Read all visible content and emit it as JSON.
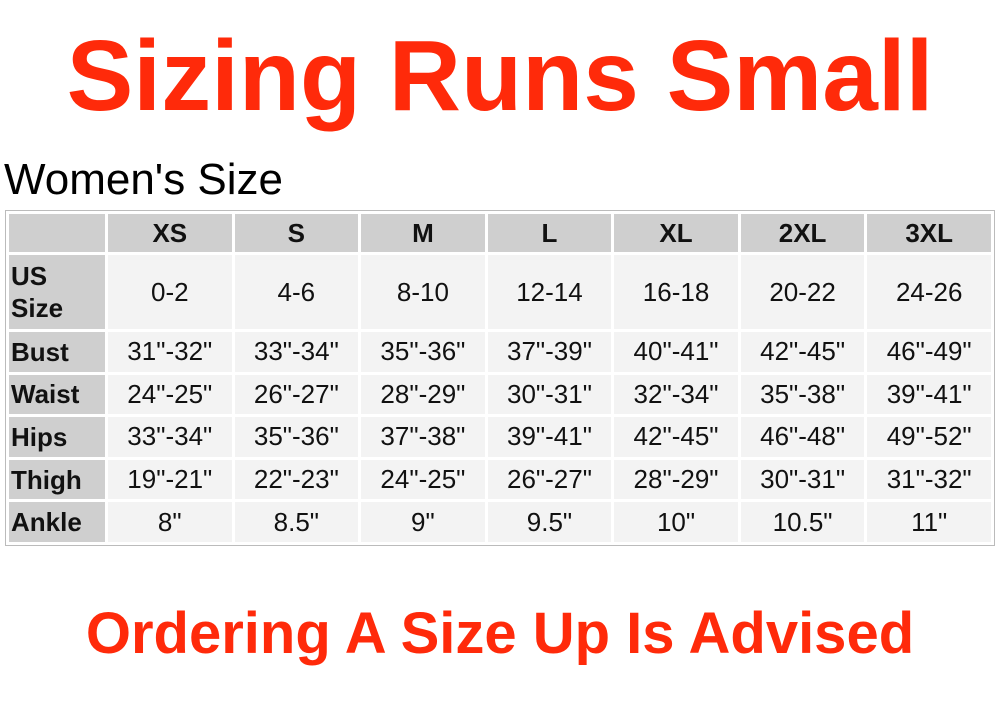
{
  "title": "Sizing Runs Small",
  "subtitle": "Women's Size",
  "footer": "Ordering A Size Up Is Advised",
  "accent_color": "#ff2a0a",
  "table": {
    "columns": [
      "XS",
      "S",
      "M",
      "L",
      "XL",
      "2XL",
      "3XL"
    ],
    "rows": [
      {
        "label": "US Size",
        "values": [
          "0-2",
          "4-6",
          "8-10",
          "12-14",
          "16-18",
          "20-22",
          "24-26"
        ]
      },
      {
        "label": "Bust",
        "values": [
          "31\"-32\"",
          "33\"-34\"",
          "35\"-36\"",
          "37\"-39\"",
          "40\"-41\"",
          "42\"-45\"",
          "46\"-49\""
        ]
      },
      {
        "label": "Waist",
        "values": [
          "24\"-25\"",
          "26\"-27\"",
          "28\"-29\"",
          "30\"-31\"",
          "32\"-34\"",
          "35\"-38\"",
          "39\"-41\""
        ]
      },
      {
        "label": "Hips",
        "values": [
          "33\"-34\"",
          "35\"-36\"",
          "37\"-38\"",
          "39\"-41\"",
          "42\"-45\"",
          "46\"-48\"",
          "49\"-52\""
        ]
      },
      {
        "label": "Thigh",
        "values": [
          "19\"-21\"",
          "22\"-23\"",
          "24\"-25\"",
          "26\"-27\"",
          "28\"-29\"",
          "30\"-31\"",
          "31\"-32\""
        ]
      },
      {
        "label": "Ankle",
        "values": [
          "8\"",
          "8.5\"",
          "9\"",
          "9.5\"",
          "10\"",
          "10.5\"",
          "11\""
        ]
      }
    ]
  }
}
